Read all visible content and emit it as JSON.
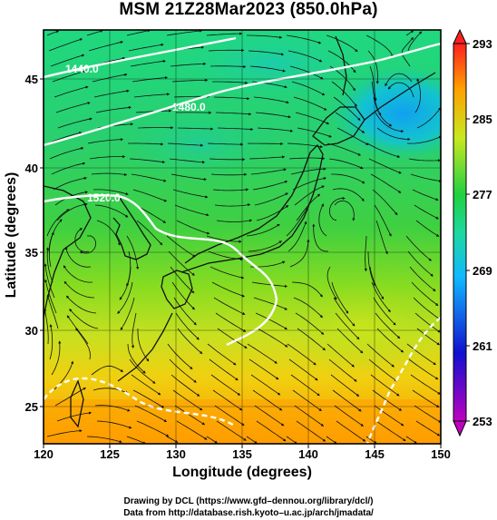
{
  "title": "MSM 21Z28Mar2023 (850.0hPa)",
  "xaxis": {
    "label": "Longitude (degrees)",
    "range": [
      120,
      150
    ],
    "ticks": [
      "120",
      "125",
      "130",
      "135",
      "140",
      "145",
      "150"
    ]
  },
  "yaxis": {
    "label": "Latitude  (degrees)",
    "range": [
      22.4,
      47.6
    ],
    "ticks": [
      "25",
      "30",
      "35",
      "40",
      "45"
    ]
  },
  "colorbar": {
    "range": [
      253,
      293
    ],
    "ticks": [
      "253",
      "261",
      "269",
      "277",
      "285",
      "293"
    ],
    "colors": [
      "#c000c0",
      "#1010d0",
      "#10b0ff",
      "#20d060",
      "#c8e820",
      "#ffa000",
      "#ff2020"
    ]
  },
  "contour_labels": [
    "1440.0",
    "1480.0",
    "1520.0"
  ],
  "credits": {
    "line1": "Drawing by DCL (https://www.gfd–dennou.org/library/dcl/)",
    "line2": "Data from http://database.rish.kyoto–u.ac.jp/arch/jmadata/"
  }
}
